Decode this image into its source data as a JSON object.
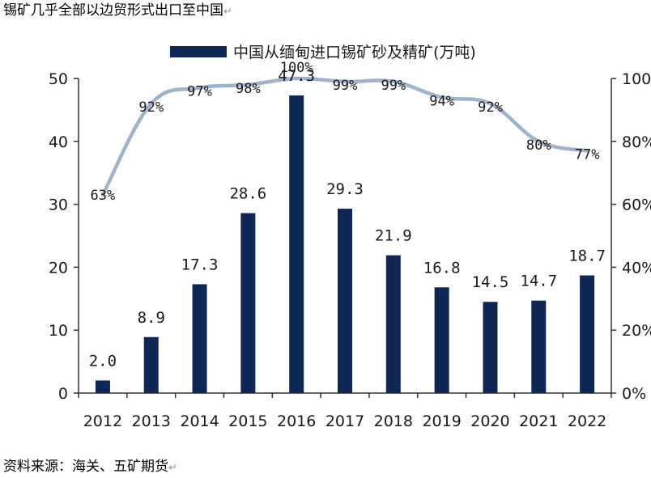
{
  "document": {
    "title": "锡矿几乎全部以边贸形式出口至中国",
    "source": "资料来源：海关、五矿期货",
    "return_mark": "↵"
  },
  "chart_data": {
    "type": "bar",
    "categories": [
      "2012",
      "2013",
      "2014",
      "2015",
      "2016",
      "2017",
      "2018",
      "2019",
      "2020",
      "2021",
      "2022"
    ],
    "series": [
      {
        "name": "中国从缅甸进口锡矿砂及精矿(万吨)",
        "type": "bar",
        "axis": "left",
        "values": [
          2.0,
          8.9,
          17.3,
          28.6,
          47.3,
          29.3,
          21.9,
          16.8,
          14.5,
          14.7,
          18.7
        ],
        "labels": [
          "2.0",
          "8.9",
          "17.3",
          "28.6",
          "47.3",
          "29.3",
          "21.9",
          "16.8",
          "14.5",
          "14.7",
          "18.7"
        ],
        "color": "#0f2754"
      },
      {
        "type": "line",
        "axis": "right",
        "values": [
          63,
          92,
          97,
          98,
          100,
          99,
          99,
          94,
          92,
          80,
          77
        ],
        "labels": [
          "63%",
          "92%",
          "97%",
          "98%",
          "100%",
          "99%",
          "99%",
          "94%",
          "92%",
          "80%",
          "77%"
        ],
        "color": "#9fb4cc"
      }
    ],
    "left_axis": {
      "ylim": [
        0,
        50
      ],
      "ticks": [
        "0",
        "10",
        "20",
        "30",
        "40",
        "50"
      ]
    },
    "right_axis": {
      "ylim": [
        0,
        100
      ],
      "ticks": [
        "0%",
        "20%",
        "40%",
        "60%",
        "80%",
        "100%"
      ]
    },
    "legend": {
      "position": "top-center"
    },
    "grid": false
  }
}
